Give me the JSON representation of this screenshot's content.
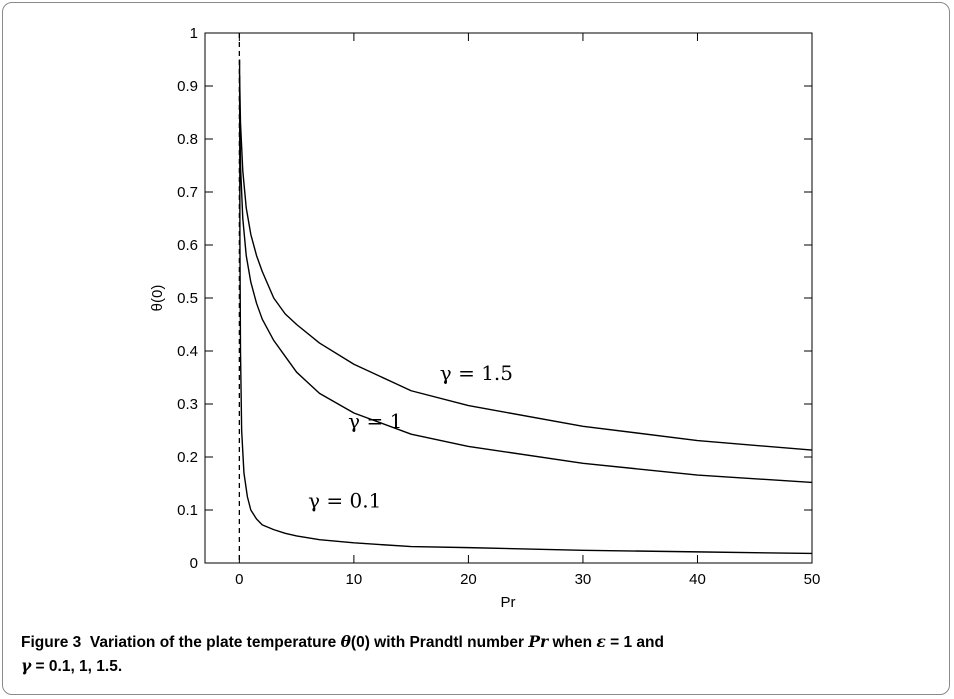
{
  "chart_data": {
    "type": "line",
    "xlabel": "Pr",
    "ylabel": "θ(0)",
    "xlim": [
      -3,
      50
    ],
    "ylim": [
      0,
      1
    ],
    "xticks": [
      0,
      10,
      20,
      30,
      40,
      50
    ],
    "yticks": [
      0,
      0.1,
      0.2,
      0.3,
      0.4,
      0.5,
      0.6,
      0.7,
      0.8,
      0.9,
      1
    ],
    "ytick_labels": [
      "0",
      "0.1",
      "0.2",
      "0.3",
      "0.4",
      "0.5",
      "0.6",
      "0.7",
      "0.8",
      "0.9",
      "1"
    ],
    "grid": false,
    "legend": "none",
    "reference_line": {
      "x": 0,
      "style": "dashed"
    },
    "series": [
      {
        "name": "γ = 1.5",
        "points": [
          [
            0.02,
            0.92
          ],
          [
            0.1,
            0.83
          ],
          [
            0.3,
            0.74
          ],
          [
            0.6,
            0.67
          ],
          [
            1,
            0.62
          ],
          [
            1.5,
            0.58
          ],
          [
            2,
            0.55
          ],
          [
            3,
            0.5
          ],
          [
            4,
            0.47
          ],
          [
            5,
            0.45
          ],
          [
            7,
            0.415
          ],
          [
            10,
            0.375
          ],
          [
            15,
            0.325
          ],
          [
            20,
            0.297
          ],
          [
            30,
            0.258
          ],
          [
            40,
            0.231
          ],
          [
            50,
            0.213
          ]
        ]
      },
      {
        "name": "γ = 1",
        "points": [
          [
            0.02,
            0.88
          ],
          [
            0.1,
            0.75
          ],
          [
            0.3,
            0.65
          ],
          [
            0.6,
            0.58
          ],
          [
            1,
            0.53
          ],
          [
            1.5,
            0.49
          ],
          [
            2,
            0.46
          ],
          [
            3,
            0.42
          ],
          [
            4,
            0.39
          ],
          [
            5,
            0.36
          ],
          [
            7,
            0.32
          ],
          [
            10,
            0.283
          ],
          [
            15,
            0.243
          ],
          [
            20,
            0.22
          ],
          [
            30,
            0.188
          ],
          [
            40,
            0.166
          ],
          [
            50,
            0.152
          ]
        ]
      },
      {
        "name": "γ = 0.1",
        "points": [
          [
            0.02,
            0.95
          ],
          [
            0.05,
            0.6
          ],
          [
            0.1,
            0.4
          ],
          [
            0.2,
            0.25
          ],
          [
            0.4,
            0.17
          ],
          [
            0.7,
            0.125
          ],
          [
            1,
            0.1
          ],
          [
            1.5,
            0.083
          ],
          [
            2,
            0.072
          ],
          [
            3,
            0.063
          ],
          [
            4,
            0.056
          ],
          [
            5,
            0.051
          ],
          [
            7,
            0.044
          ],
          [
            10,
            0.038
          ],
          [
            15,
            0.031
          ],
          [
            20,
            0.029
          ],
          [
            30,
            0.024
          ],
          [
            40,
            0.021
          ],
          [
            50,
            0.018
          ]
        ]
      }
    ],
    "annotations": [
      {
        "text": "γ = 1.5",
        "x": 17.5,
        "y": 0.345
      },
      {
        "text": "γ = 1",
        "x": 9.5,
        "y": 0.255
      },
      {
        "text": "γ = 0.1",
        "x": 6,
        "y": 0.105
      }
    ]
  },
  "caption": {
    "label": "Figure 3",
    "part1": "Variation of the plate temperature ",
    "theta": "θ",
    "part2": "(0) with Prandtl number ",
    "pr": "Pr",
    "part3": " when ",
    "eps": "ε",
    "part4": " = 1 and",
    "gamma": "γ",
    "part5": " = 0.1, 1, 1.5."
  }
}
